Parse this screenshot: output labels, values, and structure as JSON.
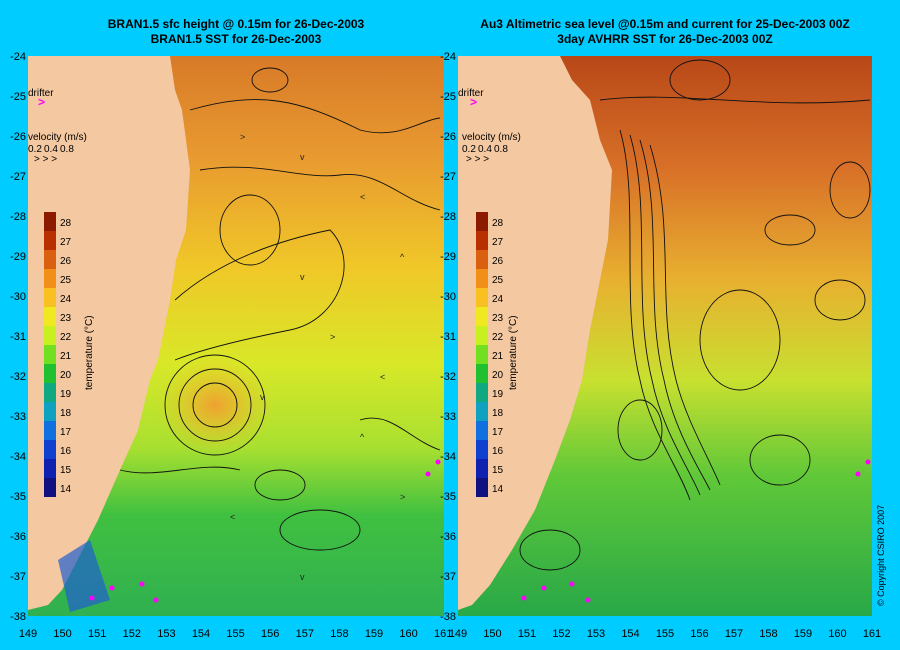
{
  "left_panel": {
    "title_line1": "BRAN1.5 sfc height @ 0.15m for 26-Dec-2003",
    "title_line2": "BRAN1.5 SST for 26-Dec-2003"
  },
  "right_panel": {
    "title_line1": "Au3 Altimetric sea level  @0.15m and current for 25-Dec-2003 00Z",
    "title_line2": "3day AVHRR SST for 26-Dec-2003 00Z"
  },
  "drifter_label": "drifter",
  "velocity_legend": {
    "title": "velocity (m/s)",
    "values": [
      "0.2",
      "0.4",
      "0.8"
    ]
  },
  "colorbar": {
    "label": "temperature (°C)",
    "ticks": [
      "28",
      "27",
      "26",
      "25",
      "24",
      "23",
      "22",
      "21",
      "20",
      "19",
      "18",
      "17",
      "16",
      "15",
      "14"
    ],
    "colors": [
      "#8b1a00",
      "#b83000",
      "#d86010",
      "#f09018",
      "#f8c020",
      "#f0e820",
      "#c8f020",
      "#70e020",
      "#20c030",
      "#10a880",
      "#10a0c0",
      "#1070e0",
      "#1040d0",
      "#1020b0",
      "#101080"
    ]
  },
  "y_axis_labels": [
    "-24",
    "-25",
    "-26",
    "-27",
    "-28",
    "-29",
    "-30",
    "-31",
    "-32",
    "-33",
    "-34",
    "-35",
    "-36",
    "-37",
    "-38"
  ],
  "x_axis_left_labels": [
    "149",
    "150",
    "151",
    "152",
    "153",
    "154",
    "155",
    "156",
    "157",
    "158",
    "159",
    "160",
    "161"
  ],
  "x_axis_right_labels": [
    "151",
    "152",
    "153",
    "154",
    "155",
    "156",
    "157",
    "158",
    "159",
    "160",
    "161"
  ],
  "x_axis_right_first": "149",
  "x_axis_right_second": "150",
  "copyright": "© Copyright CSIRO 2007",
  "colors": {
    "background": "#00ccff",
    "land": "#f4c8a0",
    "ocean_warm": "#e08a30",
    "ocean_mid": "#f0d020",
    "ocean_cool": "#50c840",
    "drifter": "#ff00ff"
  }
}
